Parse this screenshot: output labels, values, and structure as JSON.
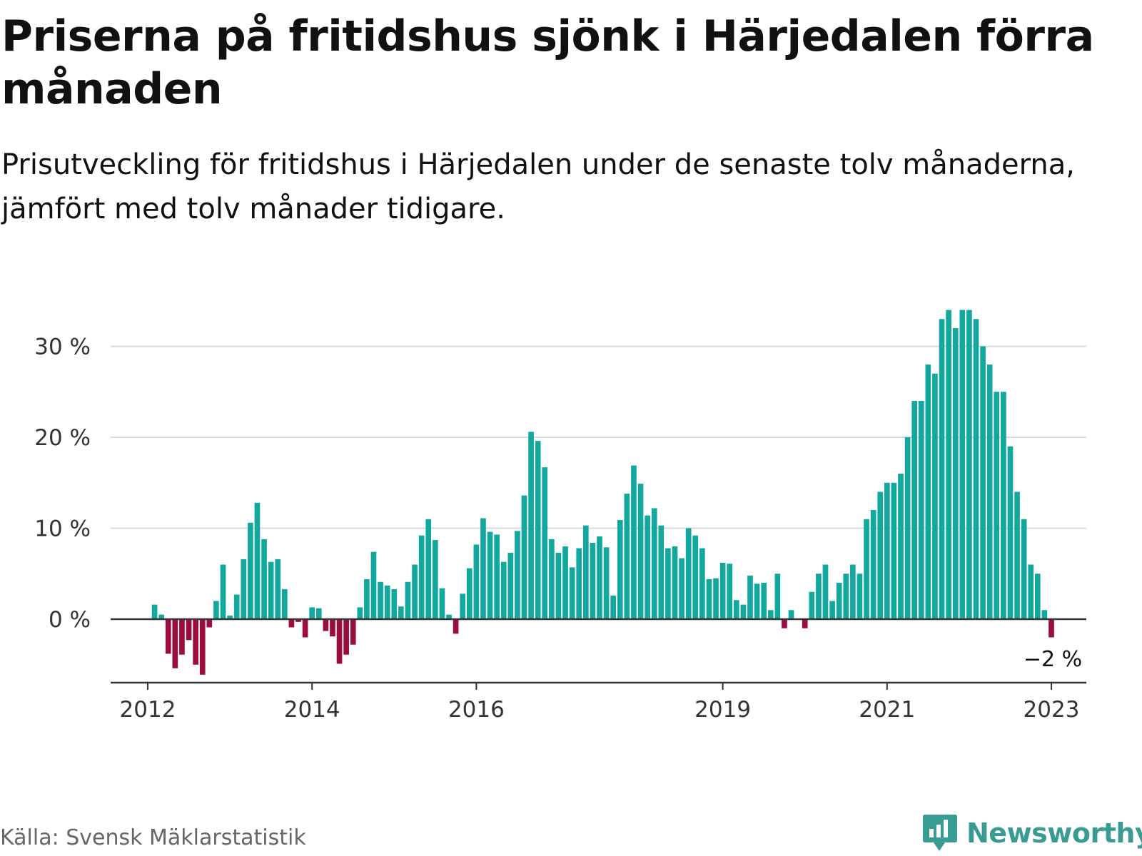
{
  "title": "Priserna på fritidshus sjönk i Härjedalen förra månaden",
  "subtitle": "Prisutveckling för fritidshus i Härjedalen under de senaste tolv månaderna, jämfört med tolv månader tidigare.",
  "source": "Källa: Svensk Mäklarstatistik",
  "brand": "Newsworthy",
  "colors": {
    "positive": "#13a89e",
    "negative": "#9b0d3f",
    "brand": "#3a9b93",
    "grid": "#d9d9d9",
    "axis": "#333333"
  },
  "chart_data": {
    "type": "bar",
    "ylim": [
      -7,
      35
    ],
    "yticks": [
      0,
      10,
      20,
      30
    ],
    "ytick_labels": [
      "0 %",
      "10 %",
      "20 %",
      "30 %"
    ],
    "xticks": [
      "2012",
      "2014",
      "2016",
      "2019",
      "2021",
      "2023"
    ],
    "xtick_months": [
      0,
      24,
      48,
      84,
      108,
      132
    ],
    "grid": true,
    "last_label": "−2 %",
    "series": [
      {
        "values": [
          1.6,
          0.5,
          -3.8,
          -5.4,
          -3.9,
          -2.3,
          -5.0,
          -6.1,
          -0.9,
          2.0,
          6.0,
          0.4,
          2.7,
          6.6,
          10.6,
          12.8,
          8.8,
          6.3,
          6.6,
          3.3,
          -0.9,
          -0.3,
          -2.0,
          1.3,
          1.2,
          -1.3,
          -1.9,
          -4.9,
          -3.9,
          -2.8,
          1.3,
          4.4,
          7.4,
          4.1,
          3.7,
          3.3,
          1.4,
          4.1,
          6.0,
          9.2,
          11.0,
          8.7,
          3.4,
          0.5,
          -1.6,
          2.8,
          5.6,
          8.2,
          11.1,
          9.6,
          9.3,
          6.3,
          7.3,
          9.7,
          13.6,
          20.6,
          19.6,
          16.7,
          8.8,
          7.3,
          8.0,
          5.7,
          7.8,
          10.3,
          8.4,
          9.1,
          7.9,
          2.6,
          10.9,
          13.8,
          16.9,
          14.9,
          11.4,
          12.2,
          10.3,
          7.8,
          8.0,
          6.7,
          10.0,
          9.2,
          7.8,
          4.4,
          4.5,
          6.2,
          6.1,
          2.1,
          1.6,
          4.8,
          3.9,
          4.0,
          1.0,
          5.0,
          -1.0,
          1.0,
          0.0,
          -1.0,
          3.0,
          5.0,
          6.0,
          2.0,
          4.0,
          5.0,
          6.0,
          5.0,
          11.0,
          12.0,
          14.0,
          15.0,
          15.0,
          16.0,
          20.0,
          24.0,
          24.0,
          28.0,
          27.0,
          33.0,
          34.0,
          32.0,
          34.0,
          34.0,
          33.0,
          30.0,
          28.0,
          25.0,
          25.0,
          19.0,
          14.0,
          11.0,
          6.0,
          5.0,
          1.0,
          -2.0
        ]
      }
    ]
  }
}
